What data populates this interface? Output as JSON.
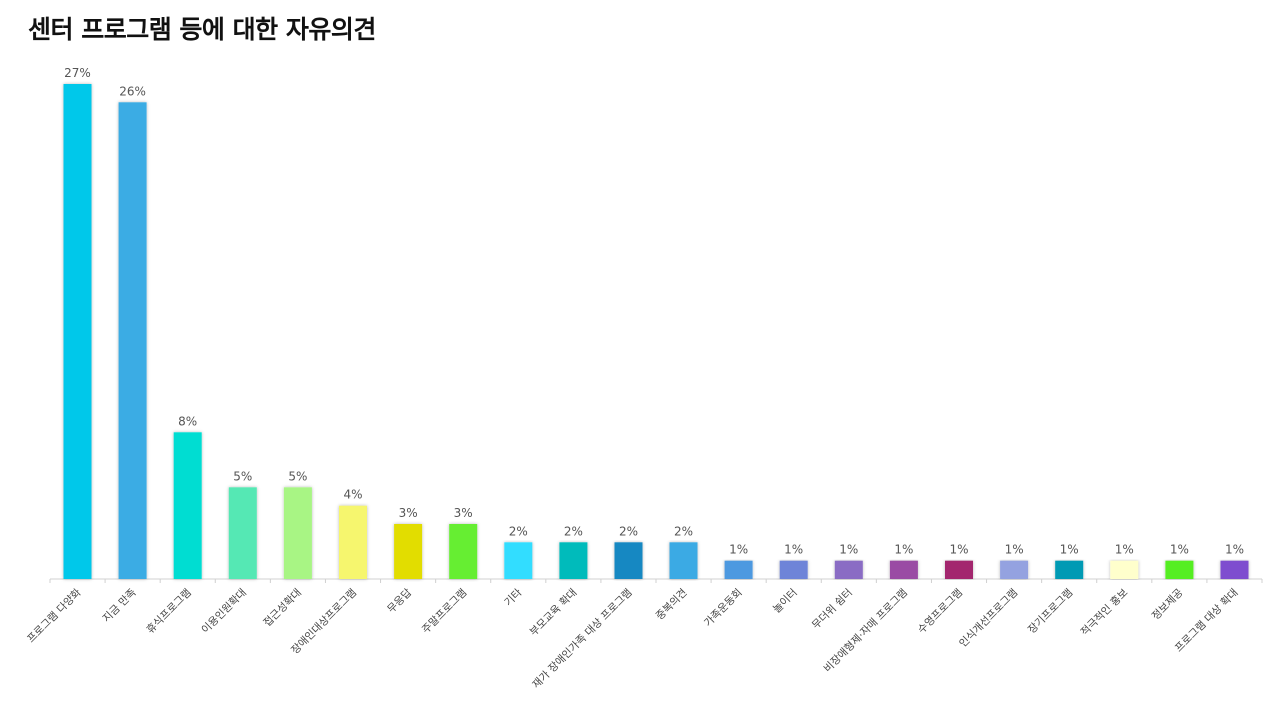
{
  "title": "센터 프로그램 등에 대한 자유의견",
  "chart_data": {
    "type": "bar",
    "title": "센터 프로그램 등에 대한 자유의견",
    "xlabel": "",
    "ylabel": "",
    "ylim": [
      0,
      27
    ],
    "grid": false,
    "legend": "none",
    "categories": [
      "프로그램 다양화",
      "지금 만족",
      "휴식프로그램",
      "이용인원확대",
      "접근성확대",
      "장애인대상프로그램",
      "무응답",
      "주말프로그램",
      "기타",
      "부모교육 확대",
      "재가 장애인가족 대상 프로그램",
      "중복의견",
      "가족운동회",
      "놀이터",
      "무더위 쉼터",
      "비장애형제·자매 프로그램",
      "수영프로그램",
      "인식개선프로그램",
      "장기프로그램",
      "적극적인 홍보",
      "정보제공",
      "프로그램 대상 확대"
    ],
    "values": [
      27,
      26,
      8,
      5,
      5,
      4,
      3,
      3,
      2,
      2,
      2,
      2,
      1,
      1,
      1,
      1,
      1,
      1,
      1,
      1,
      1,
      1
    ],
    "value_labels": [
      "27%",
      "26%",
      "8%",
      "5%",
      "5%",
      "4%",
      "3%",
      "3%",
      "2%",
      "2%",
      "2%",
      "2%",
      "1%",
      "1%",
      "1%",
      "1%",
      "1%",
      "1%",
      "1%",
      "1%",
      "1%",
      "1%"
    ],
    "colors": [
      "#00C8EA",
      "#3AACE4",
      "#00DDD2",
      "#55E8B4",
      "#A8F584",
      "#F6F66E",
      "#E2DD00",
      "#66EE33",
      "#33DDFF",
      "#00BBBB",
      "#1888C2",
      "#3AAAE4",
      "#4D99E0",
      "#6E84D8",
      "#8A6CC4",
      "#9A4BA4",
      "#A3286E",
      "#94A2E0",
      "#009AB4",
      "#FFFFCC",
      "#55EE22",
      "#7E4ECF"
    ]
  }
}
